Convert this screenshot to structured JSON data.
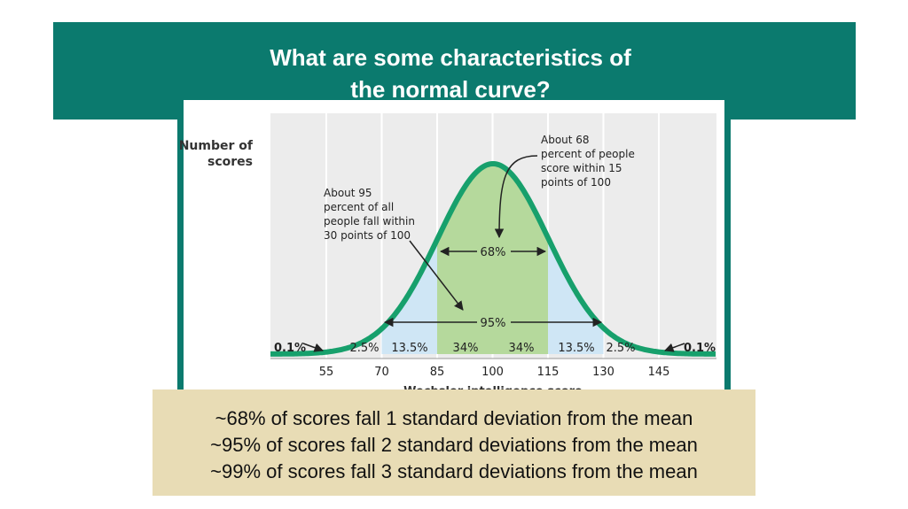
{
  "slide": {
    "title": "What are some characteristics of the normal curve?",
    "figure": {
      "y_axis_label": [
        "Number of",
        "scores"
      ],
      "note_68": [
        "About 68",
        "percent of people",
        "score within 15",
        "points of 100"
      ],
      "note_95": [
        "About 95",
        "percent of all",
        "people fall within",
        "30 points of 100"
      ],
      "band_68": "68%",
      "band_95": "95%",
      "region_labels": [
        "0.1%",
        "2.5%",
        "13.5%",
        "34%",
        "34%",
        "13.5%",
        "2.5%",
        "0.1%"
      ],
      "x_ticks": [
        "55",
        "70",
        "85",
        "100",
        "115",
        "130",
        "145"
      ],
      "x_axis_label": "Wechsler intelligence score"
    },
    "summary": [
      "~68% of scores fall 1 standard deviation from the mean",
      "~95% of scores fall 2 standard deviations from the mean",
      "~99% of scores fall 3 standard deviations from the mean"
    ]
  }
}
